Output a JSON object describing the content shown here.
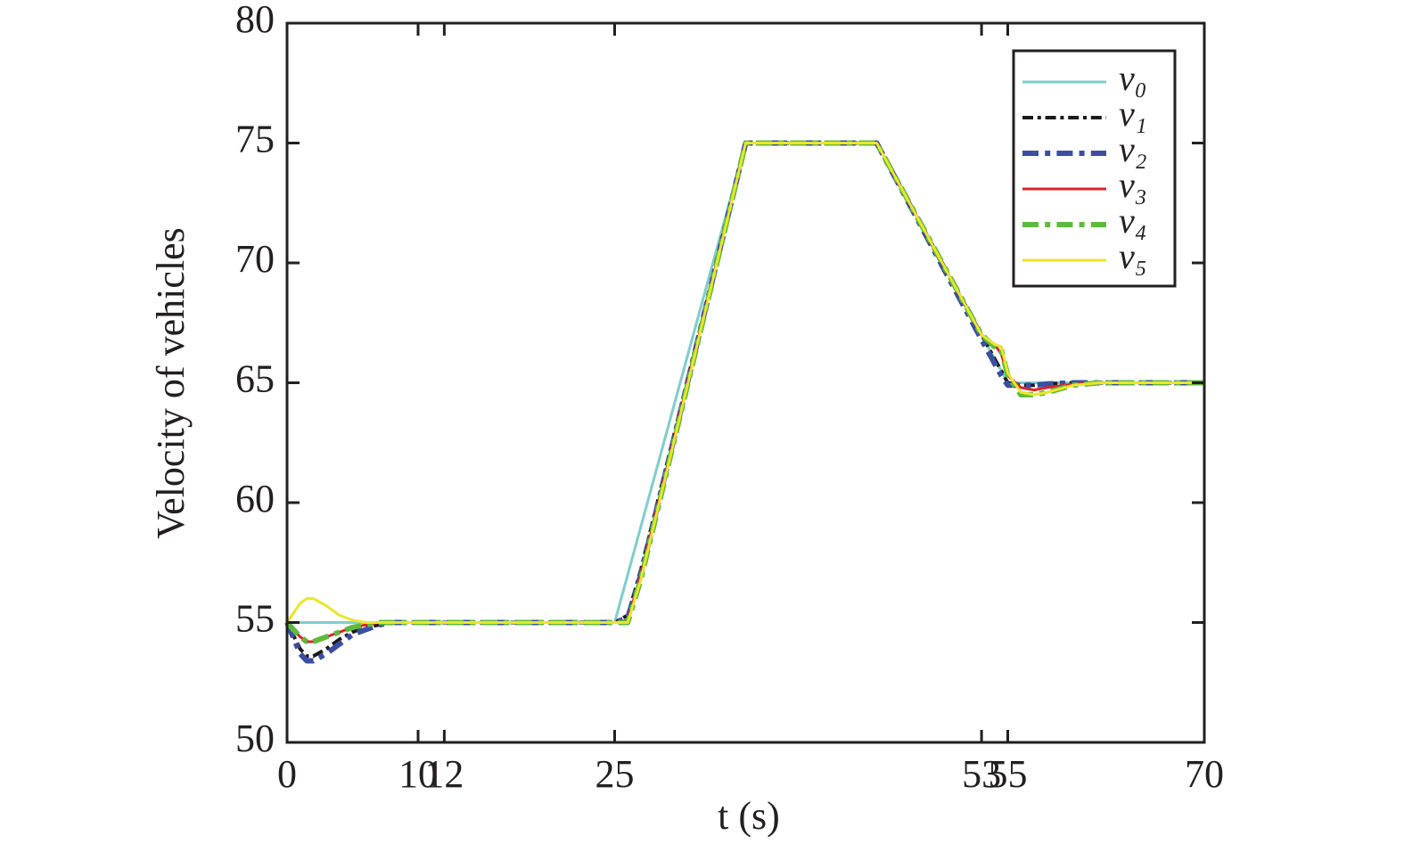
{
  "chart_data": {
    "type": "line",
    "xlabel": "t (s)",
    "ylabel": "Velocity of vehicles",
    "x": [
      0,
      1,
      1.5,
      2,
      3,
      4,
      5,
      6,
      7,
      8,
      10,
      12,
      25,
      26,
      27,
      35,
      45,
      53,
      54,
      54.5,
      55,
      56,
      57,
      58,
      60,
      62,
      65,
      70
    ],
    "xlim": [
      0,
      70
    ],
    "xticks": [
      0,
      10,
      12,
      25,
      53,
      55,
      70
    ],
    "ylim": [
      50,
      80
    ],
    "yticks": [
      50,
      55,
      60,
      65,
      70,
      75,
      80
    ],
    "legend": "upper right",
    "series": [
      {
        "name": "v₀",
        "color": "#7fcdcd",
        "linestyle": "solid",
        "linewidth": 3,
        "values": [
          55,
          55,
          55,
          55,
          55,
          55,
          55,
          55,
          55,
          55,
          55,
          55,
          55,
          57,
          59,
          75,
          75,
          67,
          66,
          65.5,
          65,
          65,
          65,
          65,
          65,
          65,
          65,
          65
        ]
      },
      {
        "name": "v₁",
        "color": "#1a1a1a",
        "linestyle": "dash-dot",
        "linewidth": 4,
        "values": [
          55,
          53.9,
          53.6,
          53.6,
          53.9,
          54.3,
          54.6,
          54.8,
          54.9,
          55,
          55,
          55,
          55,
          55.3,
          57.2,
          75,
          75,
          67,
          66,
          65.5,
          65,
          64.9,
          64.9,
          64.95,
          65,
          65,
          65,
          65
        ]
      },
      {
        "name": "v₂",
        "color": "#3a4fa3",
        "linestyle": "dash-dot",
        "linewidth": 6,
        "values": [
          55,
          53.7,
          53.4,
          53.4,
          53.7,
          54.1,
          54.5,
          54.7,
          54.9,
          55,
          55,
          55,
          55,
          55.2,
          57,
          75,
          75,
          66.8,
          65.8,
          65.3,
          64.9,
          64.9,
          64.9,
          64.95,
          65,
          65,
          65,
          65
        ]
      },
      {
        "name": "v₃",
        "color": "#d7262c",
        "linestyle": "solid",
        "linewidth": 3,
        "values": [
          55,
          54.4,
          54.2,
          54.2,
          54.4,
          54.6,
          54.8,
          54.9,
          55,
          55,
          55,
          55,
          55,
          55.1,
          57,
          75,
          75,
          67,
          66.6,
          66.2,
          65.3,
          64.8,
          64.7,
          64.8,
          64.95,
          65,
          65,
          65
        ]
      },
      {
        "name": "v₄",
        "color": "#5dbb3c",
        "linestyle": "dash-dot",
        "linewidth": 6,
        "values": [
          55,
          54.4,
          54.2,
          54.2,
          54.4,
          54.6,
          54.8,
          54.9,
          55,
          55,
          55,
          55,
          55,
          55,
          56.8,
          75,
          75,
          67,
          66.5,
          66.4,
          65.3,
          64.5,
          64.5,
          64.6,
          64.9,
          65,
          65,
          65
        ]
      },
      {
        "name": "v₅",
        "color": "#ebe52c",
        "linestyle": "solid",
        "linewidth": 3,
        "values": [
          55,
          55.8,
          56,
          56,
          55.7,
          55.3,
          55.1,
          55,
          55,
          55,
          55,
          55,
          55,
          55,
          56.8,
          75,
          75,
          67,
          66.6,
          66.5,
          65.4,
          64.6,
          64.5,
          64.6,
          64.9,
          65,
          65,
          65
        ]
      }
    ]
  }
}
